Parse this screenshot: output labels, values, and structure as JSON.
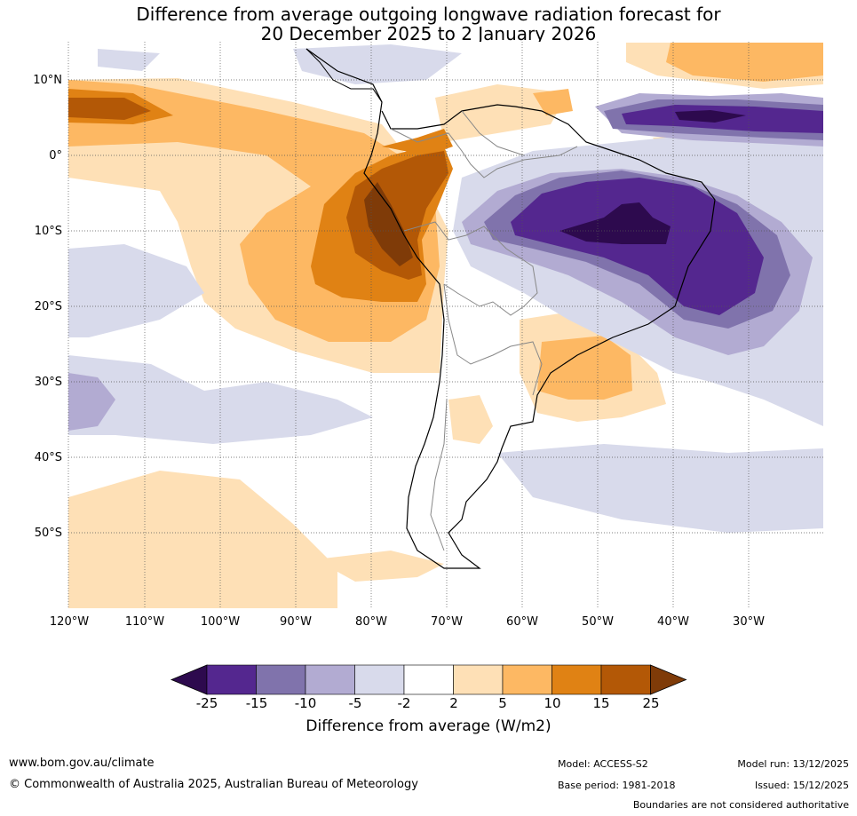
{
  "title": {
    "line1": "Difference from average outgoing longwave radiation forecast for",
    "line2": "20 December 2025 to 2 January 2026"
  },
  "axes": {
    "latitude_labels": [
      "10°N",
      "0°",
      "10°S",
      "20°S",
      "30°S",
      "40°S",
      "50°S"
    ],
    "longitude_labels": [
      "120°W",
      "110°W",
      "100°W",
      "90°W",
      "80°W",
      "70°W",
      "60°W",
      "50°W",
      "40°W",
      "30°W"
    ]
  },
  "colorbar": {
    "ticks": [
      "-25",
      "-15",
      "-10",
      "-5",
      "-2",
      "2",
      "5",
      "10",
      "15",
      "25"
    ],
    "label": "Difference from average (W/m2)",
    "colors": [
      "#2d0a4e",
      "#54278f",
      "#8073ac",
      "#b2abd2",
      "#d8daeb",
      "#ffffff",
      "#fee0b6",
      "#fdb863",
      "#e08214",
      "#b35806",
      "#7f3b08"
    ]
  },
  "footer": {
    "website": "www.bom.gov.au/climate",
    "copyright": "© Commonwealth of Australia 2025, Australian Bureau of Meteorology",
    "model": "Model: ACCESS-S2",
    "base_period": "Base period: 1981-2018",
    "model_run": "Model run: 13/12/2025",
    "issued": "Issued: 15/12/2025",
    "disclaimer": "Boundaries are not considered authoritative"
  }
}
